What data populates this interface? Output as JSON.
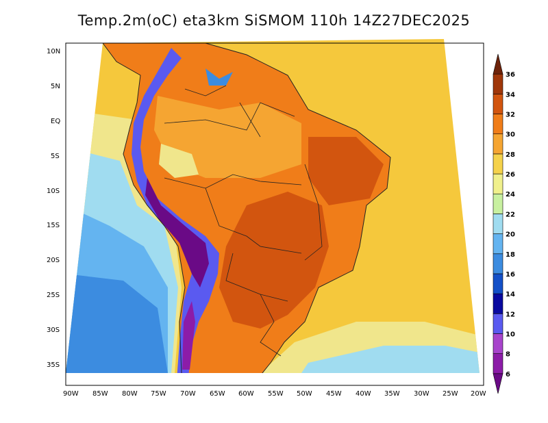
{
  "title": "Temp.2m(oC) eta3km SiSMOM 110h 14Z27DEC2025",
  "lat_labels": [
    "10N",
    "5N",
    "EQ",
    "5S",
    "10S",
    "15S",
    "20S",
    "25S",
    "30S",
    "35S"
  ],
  "lon_labels": [
    "90W",
    "85W",
    "80W",
    "75W",
    "70W",
    "65W",
    "60W",
    "55W",
    "50W",
    "45W",
    "40W",
    "35W",
    "30W",
    "25W",
    "20W"
  ],
  "colorbar": {
    "labels": [
      "6",
      "8",
      "10",
      "12",
      "14",
      "16",
      "18",
      "20",
      "22",
      "24",
      "26",
      "28",
      "30",
      "32",
      "34",
      "36"
    ],
    "colors": [
      "#6a0a86",
      "#8c1ca8",
      "#a844cc",
      "#5a5af0",
      "#0a0aa0",
      "#1450c8",
      "#3c8ce0",
      "#64b4f0",
      "#a0dcf0",
      "#c8f0a0",
      "#f0f08c",
      "#f5d24b",
      "#f5a532",
      "#f07d19",
      "#d2550f",
      "#a0370a",
      "#6e230a"
    ]
  },
  "field_colors": {
    "ocean_warm": "#f5c83c",
    "ocean_mid": "#f0e68c",
    "ocean_cool": "#a0dcf0",
    "ocean_cold": "#3c8ce0",
    "land_hot": "#f07d19",
    "land_hotter": "#d2550f",
    "land_warm": "#f5a532",
    "andes_cold": "#6a0a86",
    "andes_mid": "#5a5af0",
    "border": "#222222"
  }
}
